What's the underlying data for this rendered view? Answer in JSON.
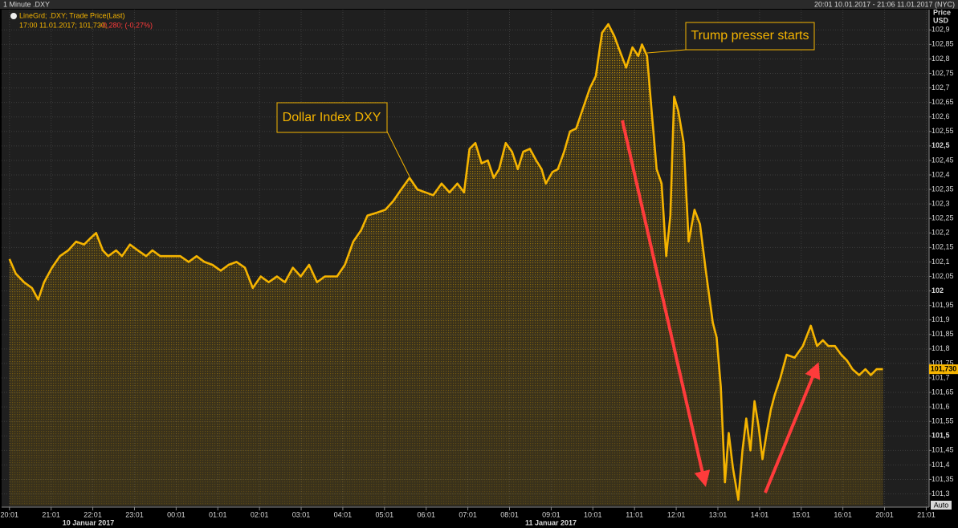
{
  "chart_data": {
    "type": "line",
    "title": "1 Minute .DXY",
    "time_range": "20:01 10.01.2017 - 21:06 11.01.2017 (NYC)",
    "legend_text": "LineGrd; .DXY; Trade Price(Last)",
    "info_line": "17:00 11.01.2017; 101,730;",
    "change_text": "-0,280; (-0,27%)",
    "y_axis_label": [
      "Price",
      "USD"
    ],
    "auto_button": "Auto",
    "date_labels": [
      "10 Januar 2017",
      "11 Januar 2017"
    ],
    "annotations": [
      "Dollar Index DXY",
      "Trump presser starts"
    ],
    "last_price": {
      "value": 101.73,
      "label": "101,730"
    },
    "grid": true,
    "xlim": [
      -0.15,
      22.03
    ],
    "xticks": [
      {
        "value": 0,
        "label": "20:01"
      },
      {
        "value": 1,
        "label": "21:01"
      },
      {
        "value": 2,
        "label": "22:01"
      },
      {
        "value": 3,
        "label": "23:01"
      },
      {
        "value": 4,
        "label": "00:01"
      },
      {
        "value": 5,
        "label": "01:01"
      },
      {
        "value": 6,
        "label": "02:01"
      },
      {
        "value": 7,
        "label": "03:01"
      },
      {
        "value": 8,
        "label": "04:01"
      },
      {
        "value": 9,
        "label": "05:01"
      },
      {
        "value": 10,
        "label": "06:01"
      },
      {
        "value": 11,
        "label": "07:01"
      },
      {
        "value": 12,
        "label": "08:01"
      },
      {
        "value": 13,
        "label": "09:01"
      },
      {
        "value": 14,
        "label": "10:01"
      },
      {
        "value": 15,
        "label": "11:01"
      },
      {
        "value": 16,
        "label": "12:01"
      },
      {
        "value": 17,
        "label": "13:01"
      },
      {
        "value": 18,
        "label": "14:01"
      },
      {
        "value": 19,
        "label": "15:01"
      },
      {
        "value": 20,
        "label": "16:01"
      },
      {
        "value": 21,
        "label": "20:01"
      },
      {
        "value": 22,
        "label": "21:01"
      }
    ],
    "ylim": [
      101.26,
      102.97
    ],
    "yticks": [
      {
        "value": 101.3,
        "label": "101,3"
      },
      {
        "value": 101.35,
        "label": "101,35"
      },
      {
        "value": 101.4,
        "label": "101,4"
      },
      {
        "value": 101.45,
        "label": "101,45"
      },
      {
        "value": 101.5,
        "label": "101,5"
      },
      {
        "value": 101.55,
        "label": "101,55"
      },
      {
        "value": 101.6,
        "label": "101,6"
      },
      {
        "value": 101.65,
        "label": "101,65"
      },
      {
        "value": 101.7,
        "label": "101,7"
      },
      {
        "value": 101.75,
        "label": "101,75"
      },
      {
        "value": 101.8,
        "label": "101,8"
      },
      {
        "value": 101.85,
        "label": "101,85"
      },
      {
        "value": 101.9,
        "label": "101,9"
      },
      {
        "value": 101.95,
        "label": "101,95"
      },
      102,
      {
        "value": 102.05,
        "label": "102,05"
      },
      {
        "value": 102.1,
        "label": "102,1"
      },
      {
        "value": 102.15,
        "label": "102,15"
      },
      {
        "value": 102.2,
        "label": "102,2"
      },
      {
        "value": 102.25,
        "label": "102,25"
      },
      {
        "value": 102.3,
        "label": "102,3"
      },
      {
        "value": 102.35,
        "label": "102,35"
      },
      {
        "value": 102.4,
        "label": "102,4"
      },
      {
        "value": 102.45,
        "label": "102,45"
      },
      {
        "value": 102.5,
        "label": "102,5"
      },
      {
        "value": 102.55,
        "label": "102,55"
      },
      {
        "value": 102.6,
        "label": "102,6"
      },
      {
        "value": 102.65,
        "label": "102,65"
      },
      {
        "value": 102.7,
        "label": "102,7"
      },
      {
        "value": 102.75,
        "label": "102,75"
      },
      {
        "value": 102.8,
        "label": "102,8"
      },
      {
        "value": 102.85,
        "label": "102,85"
      },
      {
        "value": 102.9,
        "label": "102,9"
      }
    ],
    "series": [
      {
        "name": ".DXY",
        "color": "#f5b400",
        "x": [
          0,
          0.15,
          0.35,
          0.54,
          0.69,
          0.83,
          1.02,
          1.21,
          1.41,
          1.6,
          1.79,
          1.93,
          2.08,
          2.24,
          2.37,
          2.56,
          2.7,
          2.89,
          3.08,
          3.28,
          3.43,
          3.62,
          3.91,
          4.1,
          4.3,
          4.49,
          4.68,
          4.87,
          5.07,
          5.26,
          5.45,
          5.65,
          5.84,
          6.03,
          6.22,
          6.42,
          6.61,
          6.8,
          6.99,
          7.19,
          7.38,
          7.57,
          7.86,
          8.05,
          8.25,
          8.44,
          8.59,
          8.82,
          9.02,
          9.21,
          9.4,
          9.6,
          9.79,
          9.98,
          10.17,
          10.37,
          10.56,
          10.75,
          10.91,
          11.04,
          11.18,
          11.33,
          11.48,
          11.62,
          11.75,
          11.91,
          12.06,
          12.2,
          12.33,
          12.49,
          12.64,
          12.77,
          12.87,
          13.03,
          13.16,
          13.31,
          13.45,
          13.6,
          13.74,
          13.93,
          14.07,
          14.22,
          14.37,
          14.51,
          14.64,
          14.8,
          14.95,
          15.09,
          15.18,
          15.3,
          15.41,
          15.53,
          15.65,
          15.76,
          15.86,
          15.95,
          16.05,
          16.18,
          16.3,
          16.44,
          16.57,
          16.72,
          16.88,
          16.97,
          17.07,
          17.17,
          17.26,
          17.36,
          17.49,
          17.59,
          17.68,
          17.78,
          17.88,
          17.98,
          18.07,
          18.17,
          18.27,
          18.36,
          18.5,
          18.65,
          18.84,
          19.04,
          19.23,
          19.38,
          19.52,
          19.65,
          19.81,
          19.96,
          20.1,
          20.23,
          20.39,
          20.54,
          20.67,
          20.81,
          20.96
        ],
        "values": [
          102.11,
          102.06,
          102.03,
          102.01,
          101.97,
          102.03,
          102.08,
          102.12,
          102.14,
          102.17,
          102.16,
          102.18,
          102.2,
          102.14,
          102.12,
          102.14,
          102.12,
          102.16,
          102.14,
          102.12,
          102.14,
          102.12,
          102.12,
          102.12,
          102.1,
          102.12,
          102.1,
          102.09,
          102.07,
          102.09,
          102.1,
          102.08,
          102.01,
          102.05,
          102.03,
          102.05,
          102.03,
          102.08,
          102.05,
          102.09,
          102.03,
          102.05,
          102.05,
          102.09,
          102.17,
          102.21,
          102.26,
          102.27,
          102.28,
          102.31,
          102.35,
          102.39,
          102.35,
          102.34,
          102.33,
          102.37,
          102.34,
          102.37,
          102.34,
          102.49,
          102.51,
          102.44,
          102.45,
          102.39,
          102.42,
          102.51,
          102.48,
          102.42,
          102.48,
          102.49,
          102.45,
          102.42,
          102.37,
          102.41,
          102.42,
          102.48,
          102.55,
          102.56,
          102.62,
          102.7,
          102.74,
          102.89,
          102.92,
          102.88,
          102.83,
          102.77,
          102.84,
          102.81,
          102.85,
          102.81,
          102.62,
          102.42,
          102.37,
          102.12,
          102.26,
          102.67,
          102.62,
          102.51,
          102.17,
          102.28,
          102.23,
          102.06,
          101.89,
          101.84,
          101.67,
          101.34,
          101.51,
          101.39,
          101.28,
          101.45,
          101.56,
          101.45,
          101.62,
          101.53,
          101.42,
          101.51,
          101.59,
          101.64,
          101.7,
          101.78,
          101.77,
          101.81,
          101.88,
          101.81,
          101.83,
          101.81,
          101.81,
          101.78,
          101.76,
          101.73,
          101.71,
          101.73,
          101.71,
          101.73,
          101.73
        ]
      }
    ]
  }
}
